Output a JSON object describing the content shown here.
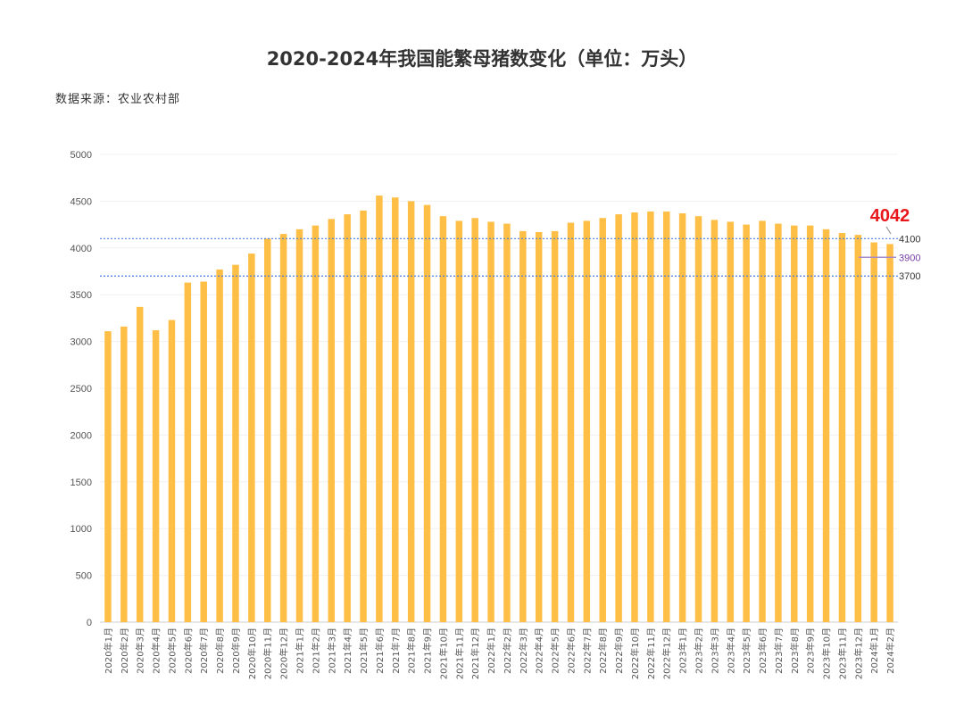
{
  "chart_data": {
    "type": "bar",
    "title": "2020-2024年我国能繁母猪数变化（单位：万头）",
    "source": "数据来源：农业农村部",
    "ylim": [
      0,
      5000
    ],
    "yticks": [
      "0",
      "500",
      "1000",
      "1500",
      "2000",
      "2500",
      "3000",
      "3500",
      "4000",
      "4500",
      "5000"
    ],
    "grid": true,
    "bar_color": "#FFBF47",
    "categories": [
      "2020年1月",
      "2020年2月",
      "2020年3月",
      "2020年4月",
      "2020年5月",
      "2020年6月",
      "2020年7月",
      "2020年8月",
      "2020年9月",
      "2020年10月",
      "2020年11月",
      "2020年12月",
      "2021年1月",
      "2021年2月",
      "2021年3月",
      "2021年4月",
      "2021年5月",
      "2021年6月",
      "2021年7月",
      "2021年8月",
      "2021年9月",
      "2021年10月",
      "2021年11月",
      "2021年12月",
      "2022年1月",
      "2022年2月",
      "2022年3月",
      "2022年4月",
      "2022年5月",
      "2022年6月",
      "2022年7月",
      "2022年8月",
      "2022年9月",
      "2022年10月",
      "2022年11月",
      "2022年12月",
      "2023年1月",
      "2023年2月",
      "2023年3月",
      "2023年4月",
      "2023年5月",
      "2023年6月",
      "2023年7月",
      "2023年8月",
      "2023年9月",
      "2023年10月",
      "2023年11月",
      "2023年12月",
      "2024年1月",
      "2024年2月"
    ],
    "values": [
      3110,
      3160,
      3370,
      3120,
      3230,
      3630,
      3640,
      3770,
      3820,
      3940,
      4100,
      4150,
      4200,
      4240,
      4310,
      4360,
      4400,
      4560,
      4540,
      4500,
      4460,
      4340,
      4290,
      4320,
      4280,
      4260,
      4180,
      4170,
      4180,
      4270,
      4290,
      4320,
      4360,
      4380,
      4390,
      4390,
      4370,
      4340,
      4300,
      4280,
      4250,
      4290,
      4260,
      4240,
      4240,
      4200,
      4160,
      4140,
      4060,
      4042
    ],
    "reference_lines": [
      {
        "value": 4100,
        "label": "4100",
        "color": "#4A7CE0"
      },
      {
        "value": 3900,
        "label": "3900",
        "color": "#A98BC9",
        "label_color": "#7B3FA8"
      },
      {
        "value": 3700,
        "label": "3700",
        "color": "#4A7CE0"
      }
    ],
    "highlight": {
      "value": "4042",
      "color": "#E8171B"
    }
  }
}
